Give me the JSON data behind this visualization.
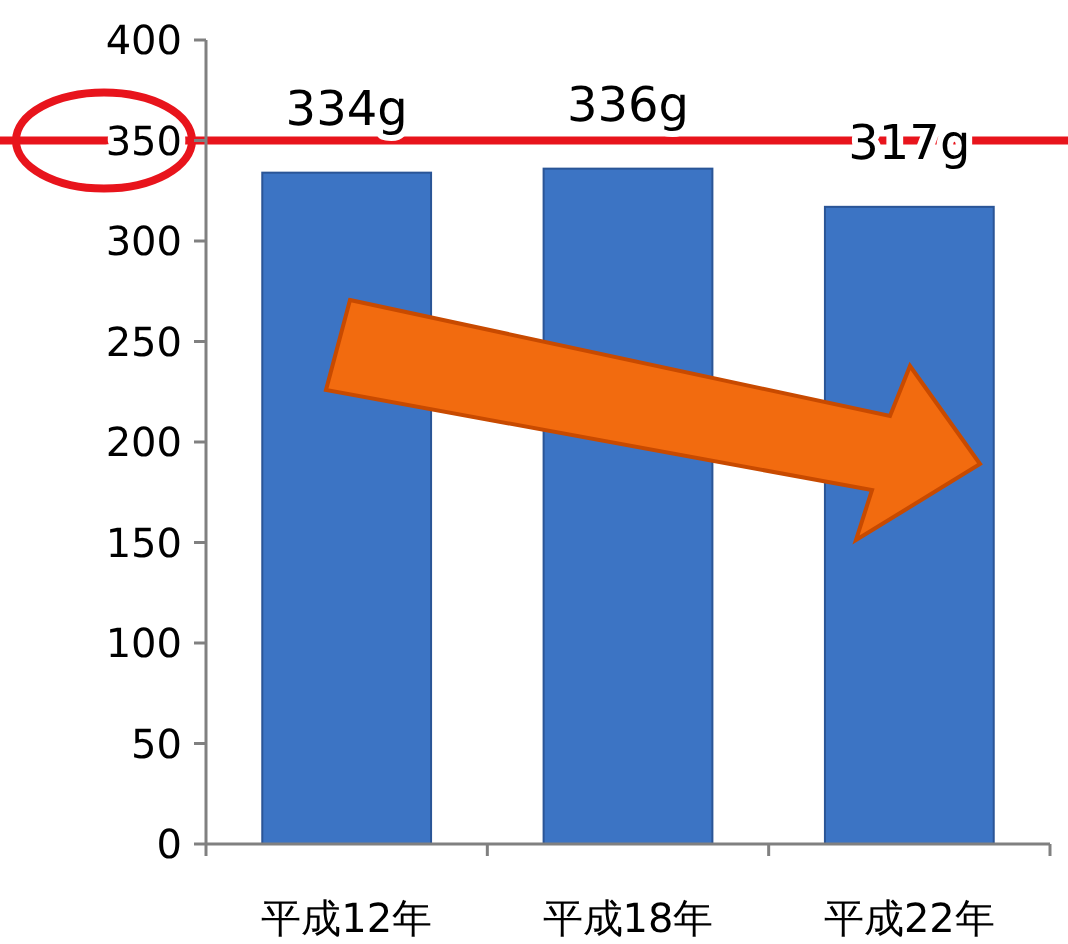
{
  "chart_data": {
    "type": "bar",
    "categories": [
      "平成12年",
      "平成18年",
      "平成22年"
    ],
    "values": [
      334,
      336,
      317
    ],
    "value_labels": [
      "334g",
      "336g",
      "317g"
    ],
    "color": "#3c74c4",
    "ylim": [
      0,
      400
    ],
    "yticks": [
      0,
      50,
      100,
      150,
      200,
      250,
      300,
      350,
      400
    ],
    "ref_lines": [
      {
        "axis": "y",
        "value": 350,
        "color": "#e8141c"
      }
    ]
  }
}
